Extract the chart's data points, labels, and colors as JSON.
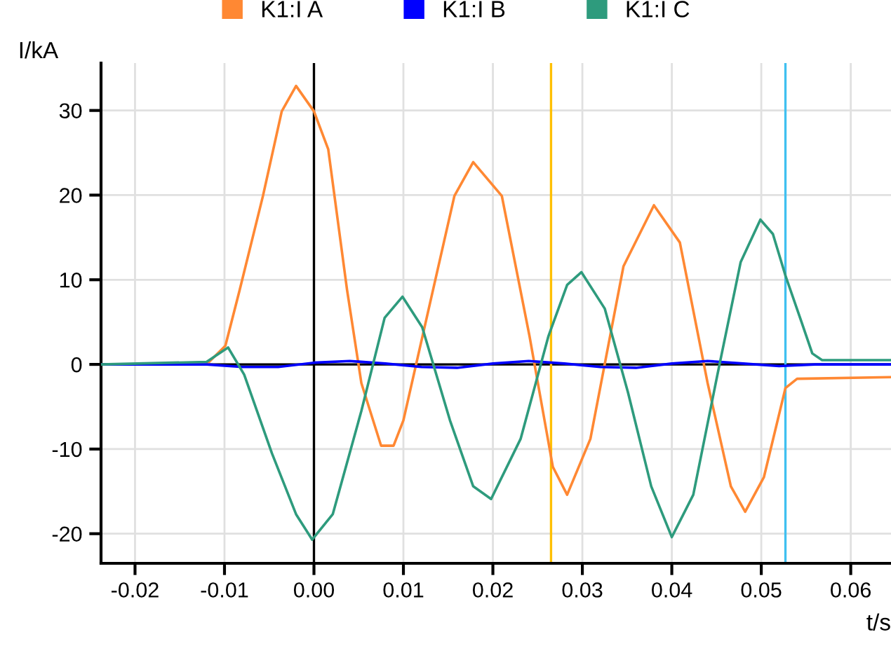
{
  "chart_data": {
    "type": "line",
    "xlabel": "t/s",
    "ylabel": "I/kA",
    "legend": "top",
    "grid": true,
    "xlim": [
      -0.0238,
      0.0645
    ],
    "ylim": [
      -23.5,
      35.6
    ],
    "xticks": [
      -0.02,
      -0.01,
      {
        "value": 0,
        "label": "0.00"
      },
      0.01,
      0.02,
      0.03,
      0.04,
      0.05,
      0.06
    ],
    "yticks": [
      -20,
      -10,
      0,
      10,
      20,
      30
    ],
    "ref_lines": [
      {
        "axis": "x",
        "value": 0.0265,
        "color": "#ffc000"
      },
      {
        "axis": "x",
        "value": 0.0527,
        "color": "#40c0f0"
      }
    ],
    "series": [
      {
        "name": "K1:I A",
        "color": "#ff8833",
        "x": [
          -0.0238,
          -0.012,
          -0.0099,
          -0.0083,
          -0.0057,
          -0.0036,
          -0.002,
          0,
          0.0016,
          0.0037,
          0.0053,
          0.0075,
          0.0089,
          0.01,
          0.0126,
          0.0157,
          0.0178,
          0.021,
          0.0241,
          0.0267,
          0.0283,
          0.0309,
          0.0346,
          0.038,
          0.0409,
          0.044,
          0.0466,
          0.0482,
          0.0503,
          0.0527,
          0.054,
          0.0645
        ],
        "values": [
          0,
          0,
          2.2,
          8.8,
          19.9,
          29.9,
          32.9,
          29.9,
          25.4,
          8.8,
          -2.2,
          -9.6,
          -9.6,
          -6.6,
          5.5,
          19.9,
          23.9,
          19.9,
          3.3,
          -12.1,
          -15.4,
          -8.8,
          11.6,
          18.8,
          14.4,
          -2.2,
          -14.4,
          -17.4,
          -13.3,
          -2.8,
          -1.7,
          -1.5
        ]
      },
      {
        "name": "K1:I B",
        "color": "#0000ff",
        "x": [
          -0.0238,
          -0.012,
          -0.008,
          -0.004,
          0,
          0.004,
          0.008,
          0.012,
          0.016,
          0.02,
          0.024,
          0.028,
          0.032,
          0.036,
          0.04,
          0.044,
          0.048,
          0.052,
          0.056,
          0.0645
        ],
        "values": [
          0,
          0,
          -0.3,
          -0.3,
          0.2,
          0.4,
          0.1,
          -0.3,
          -0.4,
          0.1,
          0.4,
          0.1,
          -0.3,
          -0.4,
          0.1,
          0.4,
          0.1,
          -0.2,
          0,
          0
        ]
      },
      {
        "name": "K1:I C",
        "color": "#2e9b7d",
        "x": [
          -0.0238,
          -0.012,
          -0.0096,
          -0.0078,
          -0.0047,
          -0.002,
          -0.0002,
          0.0021,
          0.0053,
          0.0079,
          0.0099,
          0.0121,
          0.0152,
          0.0178,
          0.0198,
          0.0231,
          0.0262,
          0.0283,
          0.0299,
          0.0325,
          0.0351,
          0.0377,
          0.04,
          0.0424,
          0.0451,
          0.0477,
          0.0499,
          0.0513,
          0.0527,
          0.0545,
          0.0557,
          0.0568,
          0.0645
        ],
        "values": [
          0,
          0.3,
          2.0,
          -1.2,
          -10.5,
          -17.7,
          -20.7,
          -17.7,
          -5.5,
          5.5,
          8.0,
          4.4,
          -6.6,
          -14.4,
          -15.9,
          -8.8,
          3.3,
          9.4,
          10.9,
          6.6,
          -3.3,
          -14.4,
          -20.4,
          -15.4,
          -1.2,
          12.1,
          17.1,
          15.4,
          10.5,
          5.0,
          1.3,
          0.5,
          0.5
        ]
      }
    ]
  }
}
